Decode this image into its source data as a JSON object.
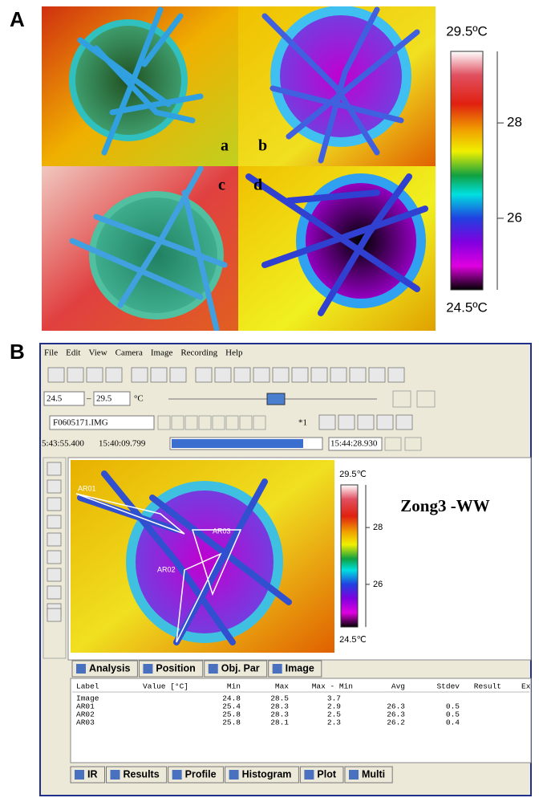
{
  "panel_a": {
    "label": "A",
    "quadrants": [
      "a",
      "b",
      "c",
      "d"
    ],
    "colorbar": {
      "max_label": "29.5ºC",
      "min_label": "24.5ºC",
      "range": [
        24.5,
        29.5
      ],
      "ticks": [
        28,
        26
      ]
    }
  },
  "panel_b": {
    "label": "B",
    "menu": [
      "File",
      "Edit",
      "View",
      "Camera",
      "Image",
      "Recording",
      "Help"
    ],
    "temp_min": "24.5",
    "temp_max": "29.5",
    "unit": "°C",
    "file": "F0605171.IMG",
    "zoom": "*1",
    "times": [
      "5:43:55.400",
      "15:40:09.799",
      "15:44:28.930"
    ],
    "regions": [
      "AR01",
      "AR03",
      "AR02"
    ],
    "image_title": "Zong3 -WW",
    "colorbar": {
      "max_label": "29.5℃",
      "min_label": "24.5℃",
      "range": [
        24.5,
        29.5
      ],
      "ticks": [
        28,
        26
      ]
    },
    "analysis_tabs": [
      "Analysis",
      "Position",
      "Obj. Par",
      "Image"
    ],
    "table": {
      "headers": [
        "Label",
        "Value [°C]",
        "Min",
        "Max",
        "Max - Min",
        "Avg",
        "Stdev",
        "Result",
        "Ex"
      ],
      "rows": [
        {
          "label": "Image",
          "min": 24.8,
          "max": 28.5,
          "range": 3.7
        },
        {
          "label": "AR01",
          "min": 25.4,
          "max": 28.3,
          "range": 2.9,
          "avg": 26.3,
          "stdev": 0.5
        },
        {
          "label": "AR02",
          "min": 25.8,
          "max": 28.3,
          "range": 2.5,
          "avg": 26.3,
          "stdev": 0.5
        },
        {
          "label": "AR03",
          "min": 25.8,
          "max": 28.1,
          "range": 2.3,
          "avg": 26.2,
          "stdev": 0.4
        }
      ]
    },
    "bottom_tabs": [
      "IR",
      "Results",
      "Profile",
      "Histogram",
      "Plot",
      "Multi"
    ]
  }
}
